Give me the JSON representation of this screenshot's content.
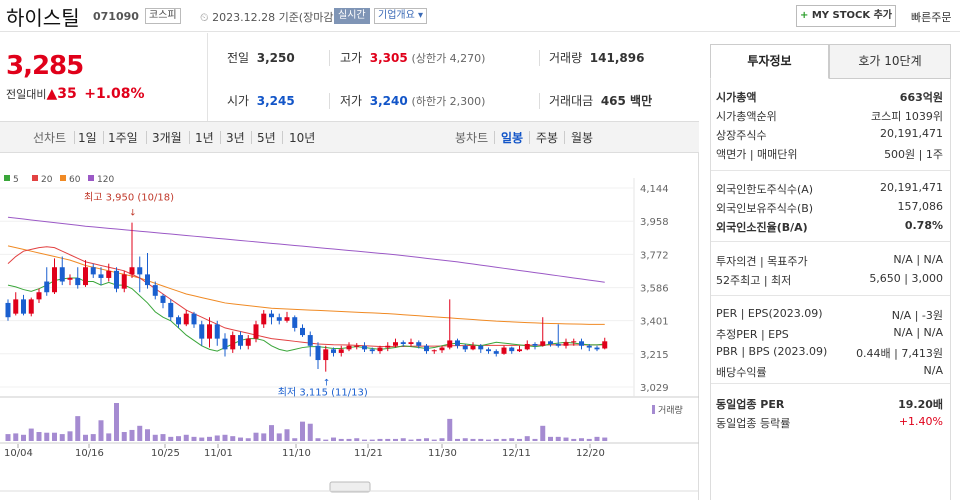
{
  "header": {
    "name": "하이스틸",
    "code": "071090",
    "market": "코스피",
    "date": "2023.12.28 기준(장마감)",
    "live": "실시간",
    "company_info": "기업개요 ▾",
    "mystock": "MY STOCK 추가",
    "fast_order": "빠른주문"
  },
  "price": {
    "current": "3,285",
    "change_label": "전일대비",
    "change": "35",
    "change_pct": "+1.08%"
  },
  "stats": {
    "prev_label": "전일",
    "prev": "3,250",
    "high_label": "고가",
    "high": "3,305",
    "upper_limit": "(상한가 4,270)",
    "volume_label": "거래량",
    "volume": "141,896",
    "open_label": "시가",
    "open": "3,245",
    "low_label": "저가",
    "low": "3,240",
    "lower_limit": "(하한가 2,300)",
    "amount_label": "거래대금",
    "amount": "465 백만"
  },
  "period_tabs": {
    "label": "선차트",
    "items": [
      "1일",
      "1주일",
      "3개월",
      "1년",
      "3년",
      "5년",
      "10년"
    ]
  },
  "candle_tabs": {
    "label": "봉차트",
    "items": [
      "일봉",
      "주봉",
      "월봉"
    ],
    "active": "일봉"
  },
  "chart_data": {
    "type": "candlestick",
    "ma_legend": [
      {
        "name": "5",
        "color": "#3aa63a"
      },
      {
        "name": "20",
        "color": "#e24242"
      },
      {
        "name": "60",
        "color": "#f08a24"
      },
      {
        "name": "120",
        "color": "#9b59c6"
      }
    ],
    "y_ticks": [
      4144,
      3958,
      3772,
      3586,
      3401,
      3215,
      3029
    ],
    "ylim": [
      3029,
      4144
    ],
    "x_ticks": [
      "10/04",
      "10/16",
      "10/25",
      "11/01",
      "11/10",
      "11/21",
      "11/30",
      "12/11",
      "12/20"
    ],
    "high_annotation": "최고 3,950 (10/18)",
    "low_annotation": "최저 3,115 (11/13)",
    "volume_legend": "거래량",
    "candles": [
      [
        3500,
        3420,
        3520,
        3400
      ],
      [
        3440,
        3520,
        3560,
        3430
      ],
      [
        3520,
        3440,
        3545,
        3430
      ],
      [
        3440,
        3520,
        3530,
        3425
      ],
      [
        3520,
        3560,
        3580,
        3500
      ],
      [
        3620,
        3560,
        3700,
        3540
      ],
      [
        3560,
        3700,
        3750,
        3550
      ],
      [
        3700,
        3620,
        3760,
        3600
      ],
      [
        3630,
        3640,
        3660,
        3600
      ],
      [
        3640,
        3600,
        3700,
        3580
      ],
      [
        3600,
        3700,
        3740,
        3590
      ],
      [
        3700,
        3660,
        3720,
        3640
      ],
      [
        3660,
        3640,
        3700,
        3600
      ],
      [
        3640,
        3680,
        3720,
        3620
      ],
      [
        3680,
        3580,
        3700,
        3560
      ],
      [
        3580,
        3660,
        3680,
        3560
      ],
      [
        3660,
        3700,
        3950,
        3640
      ],
      [
        3700,
        3660,
        3760,
        3560
      ],
      [
        3660,
        3600,
        3780,
        3580
      ],
      [
        3600,
        3540,
        3620,
        3520
      ],
      [
        3540,
        3500,
        3550,
        3470
      ],
      [
        3500,
        3420,
        3520,
        3400
      ],
      [
        3420,
        3380,
        3430,
        3360
      ],
      [
        3380,
        3440,
        3460,
        3370
      ],
      [
        3440,
        3380,
        3450,
        3360
      ],
      [
        3380,
        3300,
        3400,
        3260
      ],
      [
        3300,
        3380,
        3420,
        3250
      ],
      [
        3380,
        3300,
        3400,
        3260
      ],
      [
        3300,
        3240,
        3330,
        3200
      ],
      [
        3240,
        3320,
        3340,
        3220
      ],
      [
        3320,
        3260,
        3340,
        3240
      ],
      [
        3260,
        3300,
        3320,
        3240
      ],
      [
        3300,
        3380,
        3400,
        3280
      ],
      [
        3380,
        3440,
        3460,
        3360
      ],
      [
        3440,
        3420,
        3460,
        3380
      ],
      [
        3420,
        3400,
        3440,
        3380
      ],
      [
        3400,
        3420,
        3450,
        3390
      ],
      [
        3420,
        3360,
        3430,
        3340
      ],
      [
        3360,
        3320,
        3380,
        3310
      ],
      [
        3320,
        3260,
        3340,
        3200
      ],
      [
        3260,
        3180,
        3280,
        3130
      ],
      [
        3180,
        3240,
        3260,
        3115
      ],
      [
        3240,
        3220,
        3250,
        3200
      ],
      [
        3220,
        3240,
        3260,
        3200
      ],
      [
        3240,
        3260,
        3280,
        3230
      ],
      [
        3260,
        3260,
        3275,
        3240
      ],
      [
        3260,
        3240,
        3280,
        3225
      ],
      [
        3240,
        3230,
        3250,
        3215
      ],
      [
        3230,
        3250,
        3260,
        3215
      ],
      [
        3250,
        3260,
        3280,
        3230
      ],
      [
        3260,
        3280,
        3300,
        3250
      ],
      [
        3280,
        3270,
        3290,
        3255
      ],
      [
        3270,
        3280,
        3300,
        3255
      ],
      [
        3280,
        3260,
        3290,
        3245
      ],
      [
        3260,
        3230,
        3270,
        3215
      ],
      [
        3230,
        3235,
        3240,
        3215
      ],
      [
        3235,
        3250,
        3260,
        3220
      ],
      [
        3250,
        3290,
        3520,
        3240
      ],
      [
        3290,
        3260,
        3300,
        3245
      ],
      [
        3260,
        3240,
        3270,
        3225
      ],
      [
        3240,
        3260,
        3280,
        3235
      ],
      [
        3260,
        3240,
        3270,
        3220
      ],
      [
        3240,
        3230,
        3250,
        3215
      ],
      [
        3230,
        3215,
        3240,
        3200
      ],
      [
        3215,
        3250,
        3260,
        3210
      ],
      [
        3250,
        3230,
        3255,
        3215
      ],
      [
        3230,
        3240,
        3260,
        3225
      ],
      [
        3240,
        3270,
        3290,
        3235
      ],
      [
        3270,
        3260,
        3280,
        3240
      ],
      [
        3260,
        3285,
        3420,
        3255
      ],
      [
        3285,
        3270,
        3290,
        3255
      ],
      [
        3270,
        3260,
        3380,
        3250
      ],
      [
        3260,
        3280,
        3300,
        3245
      ],
      [
        3280,
        3285,
        3300,
        3260
      ],
      [
        3285,
        3260,
        3300,
        3240
      ],
      [
        3260,
        3250,
        3270,
        3230
      ],
      [
        3250,
        3240,
        3260,
        3230
      ],
      [
        3245,
        3285,
        3305,
        3240
      ]
    ],
    "volume": [
      10,
      11,
      9,
      18,
      13,
      12,
      12,
      10,
      14,
      36,
      9,
      10,
      30,
      11,
      55,
      13,
      16,
      22,
      17,
      9,
      10,
      6,
      7,
      9,
      6,
      5,
      6,
      8,
      9,
      7,
      5,
      4,
      12,
      11,
      23,
      11,
      17,
      4,
      28,
      25,
      4,
      2,
      5,
      3,
      3,
      4,
      2,
      2,
      3,
      3,
      3,
      4,
      2,
      3,
      4,
      2,
      4,
      32,
      3,
      4,
      3,
      3,
      2,
      3,
      3,
      4,
      3,
      7,
      3,
      22,
      6,
      6,
      5,
      3,
      4,
      3,
      6,
      5
    ],
    "ma5": [
      3600,
      3590,
      3575,
      3565,
      3580,
      3600,
      3625,
      3635,
      3640,
      3640,
      3620,
      3620,
      3600,
      3615,
      3600,
      3600,
      3580,
      3540,
      3500,
      3450,
      3420,
      3400,
      3360,
      3320,
      3290,
      3260,
      3240,
      3230,
      3250,
      3270,
      3290,
      3300,
      3300,
      3290,
      3260,
      3240,
      3230,
      3240,
      3250,
      3255,
      3255,
      3250,
      3245,
      3245,
      3250,
      3255,
      3250,
      3245,
      3240,
      3245,
      3250,
      3260,
      3255,
      3250,
      3245,
      3250,
      3260,
      3270,
      3275,
      3270,
      3265,
      3260,
      3270,
      3280,
      3275,
      3270,
      3265,
      3260,
      3255,
      3260,
      3270,
      3275,
      3280,
      3275,
      3270,
      3265,
      3265,
      3270
    ],
    "ma20": [
      3720,
      3760,
      3790,
      3800,
      3810,
      3815,
      3810,
      3790,
      3770,
      3750,
      3730,
      3720,
      3710,
      3700,
      3690,
      3680,
      3660,
      3640,
      3610,
      3580,
      3550,
      3520,
      3490,
      3460,
      3440,
      3420,
      3400,
      3380,
      3360,
      3350,
      3340,
      3330,
      3320,
      3310,
      3300,
      3295,
      3290,
      3285,
      3280,
      3275,
      3270,
      3268,
      3266,
      3265,
      3264,
      3262,
      3260,
      3258,
      3256,
      3255,
      3255,
      3256,
      3257,
      3258,
      3258,
      3258,
      3259,
      3260,
      3261,
      3261,
      3262,
      3262,
      3262,
      3262,
      3262,
      3262,
      3263,
      3263,
      3264,
      3264,
      3265,
      3265,
      3265,
      3265,
      3265,
      3265,
      3265,
      3265
    ],
    "ma60": [
      3820,
      3810,
      3800,
      3790,
      3780,
      3770,
      3760,
      3750,
      3740,
      3725,
      3710,
      3700,
      3690,
      3680,
      3670,
      3660,
      3650,
      3640,
      3625,
      3610,
      3595,
      3580,
      3565,
      3550,
      3540,
      3530,
      3520,
      3510,
      3500,
      3495,
      3490,
      3485,
      3480,
      3475,
      3470,
      3468,
      3466,
      3464,
      3462,
      3460,
      3458,
      3456,
      3454,
      3452,
      3450,
      3448,
      3446,
      3444,
      3442,
      3440,
      3437,
      3434,
      3431,
      3428,
      3425,
      3422,
      3419,
      3416,
      3413,
      3410,
      3407,
      3404,
      3401,
      3398,
      3396,
      3394,
      3392,
      3390,
      3388,
      3386,
      3385,
      3384,
      3383,
      3382,
      3381,
      3380,
      3380,
      3380
    ],
    "ma120": [
      3980,
      3975,
      3970,
      3965,
      3960,
      3955,
      3950,
      3945,
      3940,
      3935,
      3930,
      3926,
      3922,
      3918,
      3914,
      3910,
      3906,
      3902,
      3898,
      3894,
      3890,
      3886,
      3882,
      3878,
      3874,
      3870,
      3866,
      3862,
      3858,
      3854,
      3850,
      3846,
      3842,
      3838,
      3834,
      3830,
      3826,
      3822,
      3818,
      3814,
      3810,
      3806,
      3802,
      3798,
      3794,
      3790,
      3786,
      3782,
      3778,
      3774,
      3770,
      3765,
      3760,
      3755,
      3750,
      3745,
      3740,
      3735,
      3730,
      3724,
      3718,
      3712,
      3706,
      3700,
      3694,
      3688,
      3682,
      3676,
      3670,
      3664,
      3658,
      3652,
      3646,
      3640,
      3634,
      3628,
      3622,
      3616
    ]
  },
  "info_tabs": [
    "투자정보",
    "호가 10단계"
  ],
  "info_rows": [
    {
      "l": "시가총액",
      "r": "663억원",
      "bold": true
    },
    {
      "l": "시가총액순위",
      "r": "코스피 1039위"
    },
    {
      "l": "상장주식수",
      "r": "20,191,471"
    },
    {
      "l": "액면가 | 매매단위",
      "r": "500원 | 1주"
    },
    {
      "l": "외국인한도주식수(A)",
      "r": "20,191,471"
    },
    {
      "l": "외국인보유주식수(B)",
      "r": "157,086"
    },
    {
      "l": "외국인소진율(B/A)",
      "r": "0.78%",
      "bold": true
    },
    {
      "l": "투자의견 | 목표주가",
      "r": "N/A | N/A"
    },
    {
      "l": "52주최고 | 최저",
      "r": "5,650 | 3,000"
    },
    {
      "l": "PER | EPS(2023.09)",
      "r": "N/A | -3원"
    },
    {
      "l": "추정PER | EPS",
      "r": "N/A | N/A"
    },
    {
      "l": "PBR | BPS (2023.09)",
      "r": "0.44배 | 7,413원"
    },
    {
      "l": "배당수익률",
      "r": "N/A"
    },
    {
      "l": "동일업종 PER",
      "r": "19.20배",
      "bold": true
    },
    {
      "l": "동일업종 등락률",
      "r": "+1.40%",
      "red": true
    }
  ]
}
